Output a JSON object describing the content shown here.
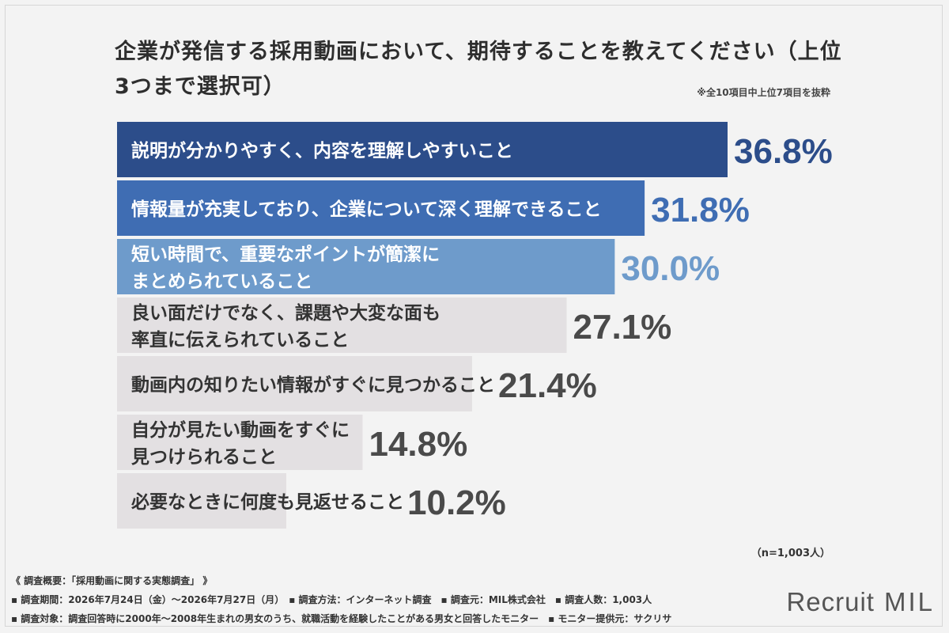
{
  "title": "企業が発信する採用動画において、期待することを教えてください（上位3つまで選択可）",
  "note": "※全10項目中上位7項目を抜粋",
  "n_label": "（n=1,003人）",
  "footer": {
    "summary": "《 調査概要：「採用動画に関する実態調査」 》",
    "line1": "▪ 調査期間：2026年7月24日（金）〜2026年7月27日（月）　▪ 調査方法：インターネット調査　▪ 調査元：MIL株式会社　▪ 調査人数：1,003人",
    "line2": "▪ 調査対象：調査回答時に2000年〜2008年生まれの男女のうち、就職活動を経験したことがある男女と回答したモニター　▪ モニター提供元：サクリサ"
  },
  "logo": {
    "recruit": "Recruit",
    "mil": "MIL"
  },
  "chart_data": {
    "type": "bar",
    "orientation": "horizontal",
    "categories": [
      [
        "説明が分かりやすく、内容を理解しやすいこと"
      ],
      [
        "情報量が充実しており、企業について深く理解できること"
      ],
      [
        "短い時間で、重要なポイントが簡潔に",
        "まとめられていること"
      ],
      [
        "良い面だけでなく、課題や大変な面も",
        "率直に伝えられていること"
      ],
      [
        "動画内の知りたい情報がすぐに見つかること"
      ],
      [
        "自分が見たい動画をすぐに",
        "見つけられること"
      ],
      [
        "必要なときに何度も見返せること"
      ]
    ],
    "values": [
      36.8,
      31.8,
      30.0,
      27.1,
      21.4,
      14.8,
      10.2
    ],
    "value_labels": [
      "36.8%",
      "31.8%",
      "30.0%",
      "27.1%",
      "21.4%",
      "14.8%",
      "10.2%"
    ],
    "bar_colors": [
      "#2c4d8a",
      "#3f6db3",
      "#6e9bcb",
      "#e3e0e2",
      "#e3e0e2",
      "#e3e0e2",
      "#e3e0e2"
    ],
    "label_colors": [
      "#ffffff",
      "#ffffff",
      "#ffffff",
      "#333333",
      "#333333",
      "#333333",
      "#333333"
    ],
    "value_colors": [
      "#2c4d8a",
      "#3f6db3",
      "#6e9bcb",
      "#4a4a4a",
      "#4a4a4a",
      "#4a4a4a",
      "#4a4a4a"
    ],
    "xlim": [
      0,
      36.8
    ]
  }
}
